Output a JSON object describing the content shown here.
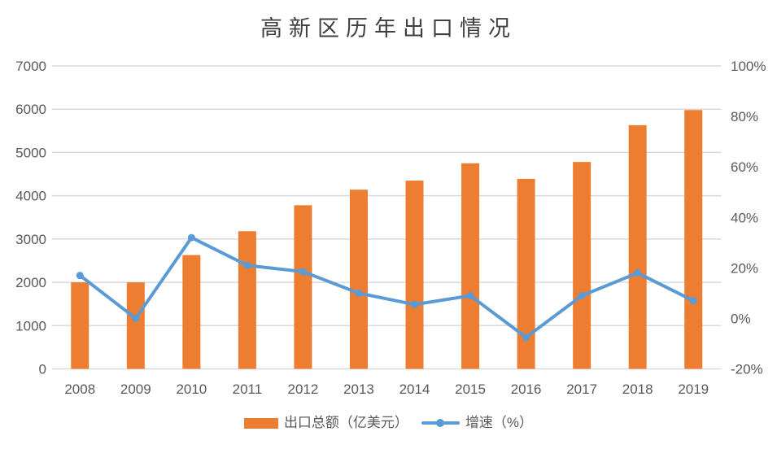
{
  "chart_data": {
    "type": "combo",
    "title": "高新区历年出口情况",
    "categories": [
      "2008",
      "2009",
      "2010",
      "2011",
      "2012",
      "2013",
      "2014",
      "2015",
      "2016",
      "2017",
      "2018",
      "2019"
    ],
    "series": [
      {
        "name": "出口总额（亿美元）",
        "type": "bar",
        "axis": "left",
        "color": "#ED7D31",
        "values": [
          2000,
          2000,
          2630,
          3180,
          3780,
          4140,
          4350,
          4750,
          4390,
          4780,
          5630,
          5980
        ]
      },
      {
        "name": "增速（%）",
        "type": "line",
        "axis": "right",
        "color": "#5B9BD5",
        "values": [
          17,
          0,
          32,
          21,
          18.5,
          10,
          5.5,
          9,
          -7.5,
          9,
          18,
          7
        ]
      }
    ],
    "left_axis": {
      "min": 0,
      "max": 7000,
      "step": 1000,
      "ticks": [
        "0",
        "1000",
        "2000",
        "3000",
        "4000",
        "5000",
        "6000",
        "7000"
      ]
    },
    "right_axis": {
      "min": -20,
      "max": 100,
      "step": 20,
      "ticks": [
        "-20%",
        "0%",
        "20%",
        "40%",
        "60%",
        "80%",
        "100%"
      ]
    },
    "grid": true,
    "legend_position": "bottom"
  },
  "legend": {
    "items": [
      {
        "label": "出口总额（亿美元）",
        "marker": "bar",
        "color": "#ED7D31"
      },
      {
        "label": "增速（%）",
        "marker": "line",
        "color": "#5B9BD5"
      }
    ]
  },
  "colors": {
    "bar": "#ED7D31",
    "line": "#5B9BD5",
    "grid": "#D9D9D9",
    "axis_text": "#595959",
    "title_text": "#404040",
    "background": "#FFFFFF"
  }
}
